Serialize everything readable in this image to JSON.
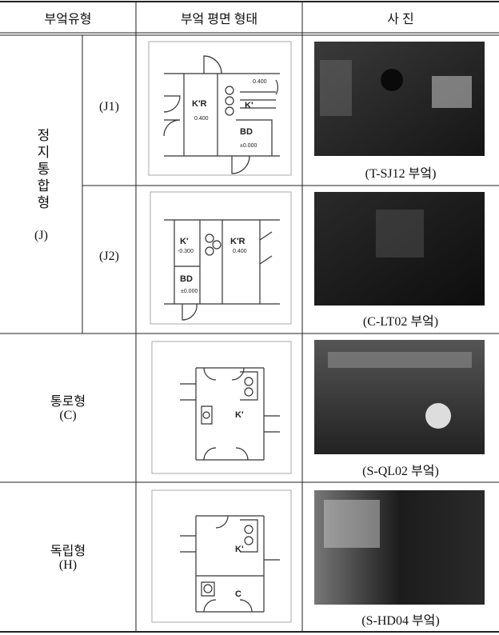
{
  "table": {
    "header": [
      "부엌유형",
      "부엌 평면 형태",
      "사 진"
    ],
    "groups": [
      {
        "label": "정지통합형",
        "code": "(J)",
        "rows": [
          {
            "id": "(J1)",
            "plan_labels": [
              "0.400",
              "K'R",
              "K'",
              "0.400",
              "BD",
              "±0.000"
            ],
            "caption": "(T-SJ12 부엌)"
          },
          {
            "id": "(J2)",
            "plan_labels": [
              "K'",
              "-0.300",
              "K'R",
              "0.400",
              "BD",
              "±0.000"
            ],
            "caption": "(C-LT02 부엌)"
          }
        ]
      },
      {
        "label": "통로형",
        "code": "(C)",
        "rows": [
          {
            "plan_labels": [
              "K'"
            ],
            "caption": "(S-QL02 부엌)"
          }
        ]
      },
      {
        "label": "독립형",
        "code": "(H)",
        "rows": [
          {
            "plan_labels": [
              "K'",
              "C"
            ],
            "caption": "(S-HD04 부엌)"
          }
        ]
      }
    ]
  }
}
